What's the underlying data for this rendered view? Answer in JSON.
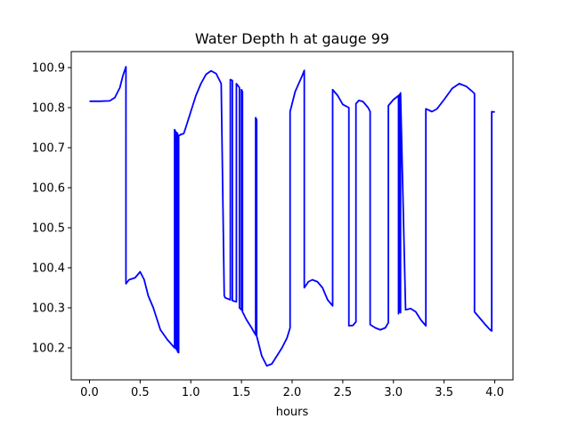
{
  "chart_data": {
    "type": "line",
    "title": "Water Depth h at gauge 99",
    "xlabel": "hours",
    "ylabel": "",
    "xlim": [
      -0.18,
      4.18
    ],
    "ylim": [
      100.12,
      100.94
    ],
    "xticks": [
      0.0,
      0.5,
      1.0,
      1.5,
      2.0,
      2.5,
      3.0,
      3.5,
      4.0
    ],
    "xtick_labels": [
      "0.0",
      "0.5",
      "1.0",
      "1.5",
      "2.0",
      "2.5",
      "3.0",
      "3.5",
      "4.0"
    ],
    "yticks": [
      100.2,
      100.3,
      100.4,
      100.5,
      100.6,
      100.7,
      100.8,
      100.9
    ],
    "ytick_labels": [
      "100.2",
      "100.3",
      "100.4",
      "100.5",
      "100.6",
      "100.7",
      "100.8",
      "100.9"
    ],
    "grid": false,
    "series": [
      {
        "color": "#0000ff",
        "x": [
          0.0,
          0.1,
          0.2,
          0.25,
          0.3,
          0.33,
          0.36,
          0.36,
          0.39,
          0.45,
          0.5,
          0.54,
          0.58,
          0.63,
          0.7,
          0.77,
          0.84,
          0.84,
          0.85,
          0.85,
          0.86,
          0.86,
          0.87,
          0.87,
          0.88,
          0.88,
          0.9,
          0.9,
          0.93,
          0.95,
          1.0,
          1.05,
          1.1,
          1.15,
          1.2,
          1.25,
          1.3,
          1.33,
          1.34,
          1.39,
          1.39,
          1.41,
          1.41,
          1.45,
          1.45,
          1.48,
          1.48,
          1.5,
          1.5,
          1.51,
          1.51,
          1.55,
          1.6,
          1.64,
          1.64,
          1.65,
          1.65,
          1.7,
          1.75,
          1.8,
          1.85,
          1.9,
          1.95,
          1.98,
          1.98,
          2.03,
          2.1,
          2.12,
          2.12,
          2.16,
          2.2,
          2.25,
          2.3,
          2.35,
          2.4,
          2.4,
          2.45,
          2.5,
          2.56,
          2.56,
          2.6,
          2.63,
          2.63,
          2.66,
          2.7,
          2.75,
          2.77,
          2.77,
          2.82,
          2.87,
          2.92,
          2.95,
          2.95,
          3.0,
          3.05,
          3.05,
          3.06,
          3.06,
          3.07,
          3.07,
          3.12,
          3.17,
          3.22,
          3.27,
          3.32,
          3.32,
          3.38,
          3.43,
          3.5,
          3.58,
          3.65,
          3.72,
          3.78,
          3.8,
          3.8,
          3.85,
          3.9,
          3.95,
          3.97,
          3.97,
          4.0
        ],
        "y": [
          100.816,
          100.816,
          100.817,
          100.825,
          100.85,
          100.88,
          100.902,
          100.36,
          100.37,
          100.375,
          100.39,
          100.37,
          100.33,
          100.3,
          100.245,
          100.22,
          100.2,
          100.745,
          100.74,
          100.2,
          100.195,
          100.738,
          100.735,
          100.19,
          100.188,
          100.73,
          100.732,
          100.733,
          100.735,
          100.75,
          100.79,
          100.83,
          100.86,
          100.883,
          100.892,
          100.885,
          100.86,
          100.33,
          100.325,
          100.32,
          100.87,
          100.868,
          100.318,
          100.315,
          100.86,
          100.85,
          100.3,
          100.295,
          100.845,
          100.84,
          100.29,
          100.27,
          100.25,
          100.232,
          100.775,
          100.77,
          100.23,
          100.18,
          100.155,
          100.16,
          100.18,
          100.2,
          100.225,
          100.25,
          100.79,
          100.84,
          100.88,
          100.893,
          100.35,
          100.365,
          100.37,
          100.365,
          100.35,
          100.32,
          100.305,
          100.845,
          100.83,
          100.808,
          100.8,
          100.255,
          100.256,
          100.265,
          100.81,
          100.818,
          100.815,
          100.8,
          100.79,
          100.258,
          100.25,
          100.245,
          100.25,
          100.263,
          100.805,
          100.82,
          100.83,
          100.285,
          100.833,
          100.29,
          100.288,
          100.837,
          100.295,
          100.298,
          100.29,
          100.27,
          100.255,
          100.797,
          100.79,
          100.797,
          100.82,
          100.848,
          100.86,
          100.853,
          100.84,
          100.835,
          100.29,
          100.275,
          100.26,
          100.246,
          100.242,
          100.79,
          100.789
        ]
      }
    ]
  }
}
